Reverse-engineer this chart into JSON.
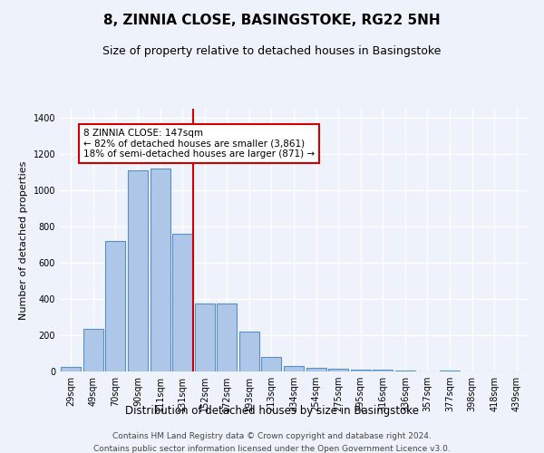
{
  "title": "8, ZINNIA CLOSE, BASINGSTOKE, RG22 5NH",
  "subtitle": "Size of property relative to detached houses in Basingstoke",
  "xlabel": "Distribution of detached houses by size in Basingstoke",
  "ylabel": "Number of detached properties",
  "footer_line1": "Contains HM Land Registry data © Crown copyright and database right 2024.",
  "footer_line2": "Contains public sector information licensed under the Open Government Licence v3.0.",
  "categories": [
    "29sqm",
    "49sqm",
    "70sqm",
    "90sqm",
    "111sqm",
    "131sqm",
    "152sqm",
    "172sqm",
    "193sqm",
    "213sqm",
    "234sqm",
    "254sqm",
    "275sqm",
    "295sqm",
    "316sqm",
    "336sqm",
    "357sqm",
    "377sqm",
    "398sqm",
    "418sqm",
    "439sqm"
  ],
  "values": [
    25,
    235,
    720,
    1110,
    1120,
    760,
    375,
    375,
    220,
    80,
    30,
    20,
    15,
    10,
    10,
    5,
    0,
    5,
    0,
    0,
    0
  ],
  "bar_color": "#aec6e8",
  "bar_edge_color": "#5a8fc4",
  "bar_edge_width": 0.8,
  "reference_line_x": 5.5,
  "reference_line_color": "#cc0000",
  "annotation_text": "8 ZINNIA CLOSE: 147sqm\n← 82% of detached houses are smaller (3,861)\n18% of semi-detached houses are larger (871) →",
  "annotation_box_color": "#cc0000",
  "annotation_text_color": "#000000",
  "ylim": [
    0,
    1450
  ],
  "yticks": [
    0,
    200,
    400,
    600,
    800,
    1000,
    1200,
    1400
  ],
  "bg_color": "#eef2fb",
  "plot_bg_color": "#eef2fb",
  "grid_color": "#ffffff",
  "title_fontsize": 11,
  "subtitle_fontsize": 9,
  "xlabel_fontsize": 8.5,
  "ylabel_fontsize": 8,
  "tick_fontsize": 7,
  "footer_fontsize": 6.5
}
